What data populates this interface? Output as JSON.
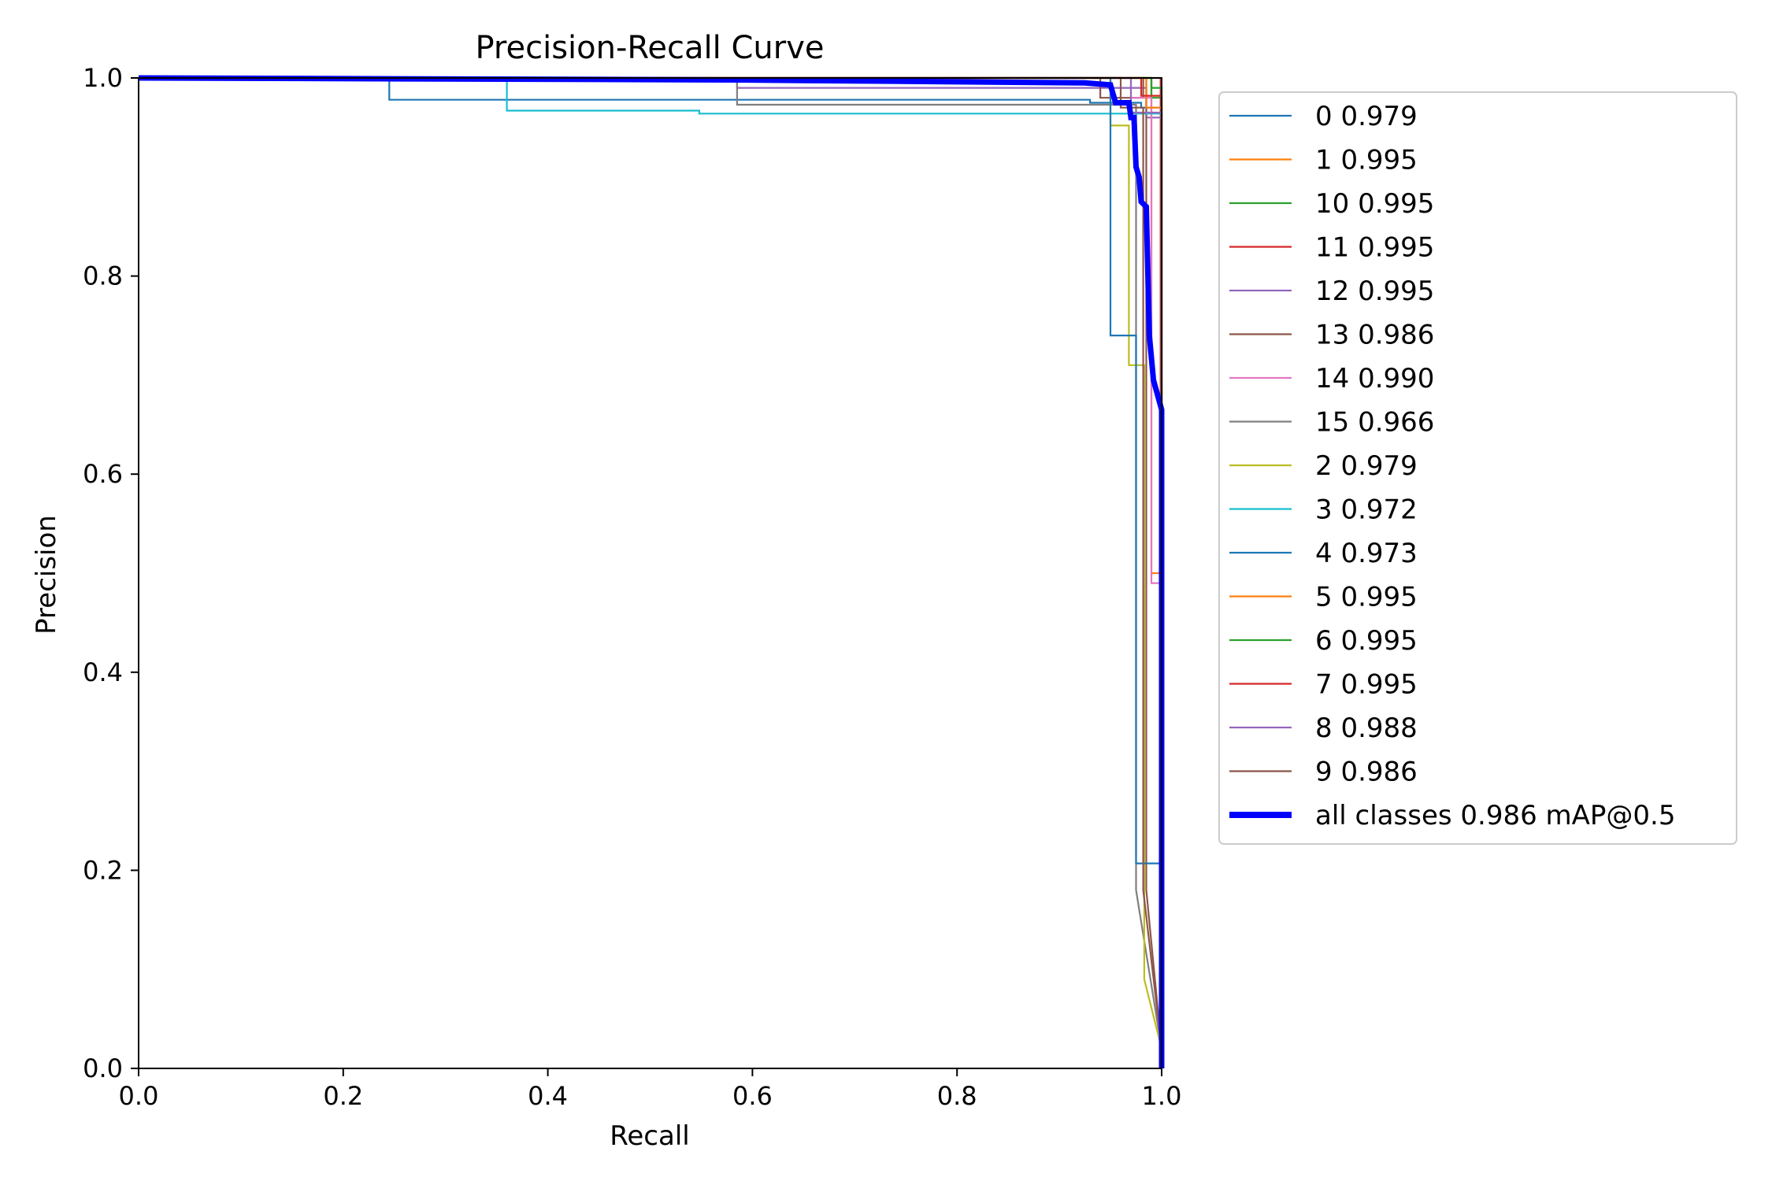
{
  "chart_data": {
    "type": "line",
    "title": "Precision-Recall Curve",
    "xlabel": "Recall",
    "ylabel": "Precision",
    "xlim": [
      0.0,
      1.0
    ],
    "ylim": [
      0.0,
      1.0
    ],
    "xticks": [
      "0.0",
      "0.2",
      "0.4",
      "0.6",
      "0.8",
      "1.0"
    ],
    "yticks": [
      "0.0",
      "0.2",
      "0.4",
      "0.6",
      "0.8",
      "1.0"
    ],
    "grid": false,
    "legend_position": "outside right, top",
    "series": [
      {
        "name": "0 0.979",
        "color": "#1f77b4",
        "points": [
          [
            0,
            1
          ],
          [
            0.245,
            1
          ],
          [
            0.245,
            0.978
          ],
          [
            0.93,
            0.978
          ],
          [
            0.93,
            0.975
          ],
          [
            0.98,
            0.975
          ],
          [
            0.98,
            0.97
          ],
          [
            1,
            0.97
          ],
          [
            1,
            0
          ]
        ]
      },
      {
        "name": "1 0.995",
        "color": "#ff7f0e",
        "points": [
          [
            0,
            1
          ],
          [
            0.99,
            1
          ],
          [
            0.99,
            0.5
          ],
          [
            1,
            0.5
          ],
          [
            1,
            0
          ]
        ]
      },
      {
        "name": "10 0.995",
        "color": "#2ca02c",
        "points": [
          [
            0,
            1
          ],
          [
            0.99,
            1
          ],
          [
            0.99,
            0.98
          ],
          [
            1,
            0.98
          ],
          [
            1,
            0
          ]
        ]
      },
      {
        "name": "11 0.995",
        "color": "#d62728",
        "points": [
          [
            0,
            1
          ],
          [
            0.999,
            1
          ],
          [
            0.999,
            0.1
          ],
          [
            1,
            0
          ]
        ]
      },
      {
        "name": "12 0.995",
        "color": "#9467bd",
        "points": [
          [
            0,
            1
          ],
          [
            0.585,
            1
          ],
          [
            0.585,
            0.99
          ],
          [
            0.985,
            0.99
          ],
          [
            0.985,
            0.96
          ],
          [
            1,
            0.96
          ],
          [
            1,
            0
          ]
        ]
      },
      {
        "name": "13 0.986",
        "color": "#8c564b",
        "points": [
          [
            0,
            1
          ],
          [
            0.94,
            1
          ],
          [
            0.94,
            0.98
          ],
          [
            0.982,
            0.98
          ],
          [
            0.982,
            1
          ],
          [
            0.985,
            1
          ],
          [
            0.985,
            0.18
          ],
          [
            1,
            0.02
          ],
          [
            1,
            0
          ]
        ]
      },
      {
        "name": "14 0.990",
        "color": "#e377c2",
        "points": [
          [
            0,
            1
          ],
          [
            0.97,
            1
          ],
          [
            0.97,
            0.98
          ],
          [
            0.99,
            0.98
          ],
          [
            0.99,
            0.49
          ],
          [
            1,
            0.49
          ],
          [
            1,
            0
          ]
        ]
      },
      {
        "name": "15 0.966",
        "color": "#7f7f7f",
        "points": [
          [
            0,
            1
          ],
          [
            0.585,
            1
          ],
          [
            0.585,
            0.973
          ],
          [
            0.975,
            0.973
          ],
          [
            0.975,
            0.18
          ],
          [
            1,
            0.02
          ],
          [
            1,
            0
          ]
        ]
      },
      {
        "name": "2 0.979",
        "color": "#bcbd22",
        "points": [
          [
            0,
            1
          ],
          [
            0.95,
            1
          ],
          [
            0.95,
            0.952
          ],
          [
            0.968,
            0.952
          ],
          [
            0.968,
            0.71
          ],
          [
            0.983,
            0.71
          ],
          [
            0.983,
            0.09
          ],
          [
            1,
            0.02
          ],
          [
            1,
            0
          ]
        ]
      },
      {
        "name": "3 0.972",
        "color": "#17becf",
        "points": [
          [
            0,
            1
          ],
          [
            0.36,
            1
          ],
          [
            0.36,
            0.967
          ],
          [
            0.548,
            0.967
          ],
          [
            0.548,
            0.964
          ],
          [
            1,
            0.964
          ],
          [
            1,
            0
          ]
        ]
      },
      {
        "name": "4 0.973",
        "color": "#1f77b4",
        "points": [
          [
            0,
            1
          ],
          [
            0.95,
            1
          ],
          [
            0.95,
            0.74
          ],
          [
            0.975,
            0.74
          ],
          [
            0.975,
            0.207
          ],
          [
            1,
            0.207
          ],
          [
            1,
            0
          ]
        ]
      },
      {
        "name": "5 0.995",
        "color": "#ff7f0e",
        "points": [
          [
            0,
            1
          ],
          [
            0.985,
            1
          ],
          [
            0.985,
            0.97
          ],
          [
            0.996,
            0.97
          ],
          [
            0.996,
            0.97
          ],
          [
            1,
            0.97
          ],
          [
            1,
            0
          ]
        ]
      },
      {
        "name": "6 0.995",
        "color": "#2ca02c",
        "points": [
          [
            0,
            1
          ],
          [
            0.99,
            1
          ],
          [
            0.99,
            0.99
          ],
          [
            1,
            0.99
          ],
          [
            1,
            0
          ]
        ]
      },
      {
        "name": "7 0.995",
        "color": "#d62728",
        "points": [
          [
            0,
            1
          ],
          [
            0.98,
            1
          ],
          [
            0.98,
            0.982
          ],
          [
            1,
            0.982
          ],
          [
            1,
            0
          ]
        ]
      },
      {
        "name": "8 0.988",
        "color": "#9467bd",
        "points": [
          [
            0,
            1
          ],
          [
            0.97,
            1
          ],
          [
            0.97,
            0.965
          ],
          [
            1,
            0.965
          ],
          [
            1,
            0
          ]
        ]
      },
      {
        "name": "9 0.986",
        "color": "#8c564b",
        "points": [
          [
            0,
            1
          ],
          [
            0.96,
            1
          ],
          [
            0.96,
            0.97
          ],
          [
            0.982,
            0.97
          ],
          [
            0.982,
            0.18
          ],
          [
            1,
            0.02
          ],
          [
            1,
            0
          ]
        ]
      },
      {
        "name": "all classes 0.986 mAP@0.5",
        "color": "#0000ff",
        "bold": true,
        "points": [
          [
            0,
            1
          ],
          [
            0.585,
            0.998
          ],
          [
            0.925,
            0.995
          ],
          [
            0.95,
            0.993
          ],
          [
            0.955,
            0.975
          ],
          [
            0.968,
            0.975
          ],
          [
            0.97,
            0.96
          ],
          [
            0.973,
            0.96
          ],
          [
            0.975,
            0.91
          ],
          [
            0.978,
            0.9
          ],
          [
            0.98,
            0.875
          ],
          [
            0.985,
            0.87
          ],
          [
            0.988,
            0.74
          ],
          [
            0.992,
            0.695
          ],
          [
            1,
            0.665
          ],
          [
            1,
            0
          ]
        ]
      }
    ]
  }
}
